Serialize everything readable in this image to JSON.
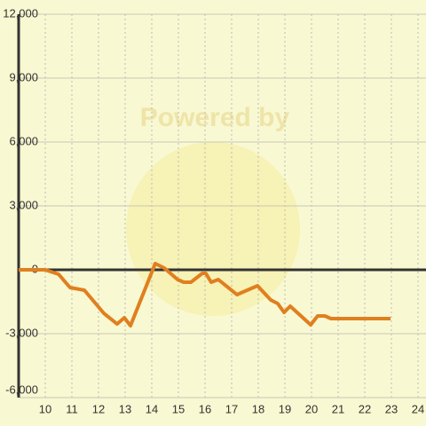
{
  "chart_data": {
    "type": "line",
    "watermark": "Powered by",
    "x": [
      9,
      10,
      10.5,
      10.93,
      11.47,
      12.2,
      12.7,
      12.97,
      13.2,
      14.13,
      14.47,
      14.97,
      15.2,
      15.47,
      15.9,
      16.03,
      16.23,
      16.5,
      17.2,
      17.97,
      18.47,
      18.73,
      18.97,
      19.2,
      19.97,
      20.23,
      20.5,
      20.73,
      22.97
    ],
    "series": [
      {
        "color": "#e07f1f",
        "values": [
          0,
          0,
          -208,
          -833,
          -958,
          -2042,
          -2542,
          -2250,
          -2625,
          292,
          83,
          -458,
          -583,
          -583,
          -167,
          -167,
          -583,
          -458,
          -1167,
          -750,
          -1417,
          -1583,
          -2000,
          -1708,
          -2583,
          -2167,
          -2167,
          -2292,
          -2292
        ]
      }
    ],
    "xlim": [
      9,
      24.3
    ],
    "ylim": [
      -6000,
      12000
    ],
    "xticks": [
      10,
      11,
      12,
      13,
      14,
      15,
      16,
      17,
      18,
      19,
      20,
      21,
      22,
      23,
      24
    ],
    "yticks": [
      {
        "value": -6000,
        "label": "-6,000"
      },
      {
        "value": -3000,
        "label": "-3,000"
      },
      0,
      {
        "value": 3000,
        "label": "3,000"
      },
      {
        "value": 6000,
        "label": "6,000"
      },
      {
        "value": 9000,
        "label": "9,000"
      },
      {
        "value": 12000,
        "label": "12,000"
      }
    ],
    "grid": true
  }
}
